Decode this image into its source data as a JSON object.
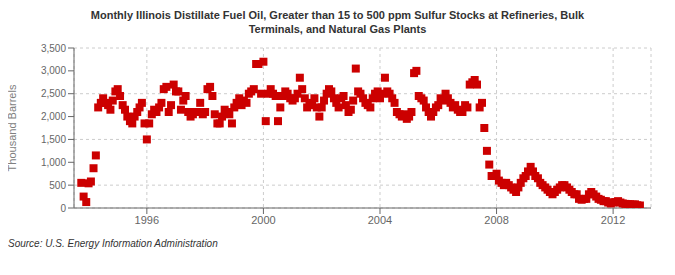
{
  "chart_data": {
    "type": "scatter",
    "title": "Monthly Illinois Distillate Fuel Oil, Greater than 15 to 500 ppm Sulfur Stocks at Refineries, Bulk\nTerminals, and Natural Gas Plants",
    "ylabel": "Thousand Barrels",
    "source": "Source: U.S. Energy Information Administration",
    "color": "#cc0000",
    "marker": "square",
    "grid": true,
    "xlim": [
      1993.5,
      2013.3
    ],
    "xticks": [
      1996,
      2000,
      2004,
      2008,
      2012
    ],
    "ylim": [
      0,
      3500
    ],
    "yticks": [
      0,
      500,
      {
        "value": 1000,
        "label": "1,000"
      },
      {
        "value": 1500,
        "label": "1,500"
      },
      {
        "value": 2000,
        "label": "2,000"
      },
      {
        "value": 2500,
        "label": "2,500"
      },
      {
        "value": 3000,
        "label": "3,000"
      },
      {
        "value": 3500,
        "label": "3,500"
      }
    ],
    "x": [
      1993.75,
      1993.83,
      1993.92,
      1994.0,
      1994.08,
      1994.17,
      1994.25,
      1994.33,
      1994.42,
      1994.5,
      1994.58,
      1994.67,
      1994.75,
      1994.83,
      1994.92,
      1995.0,
      1995.08,
      1995.17,
      1995.25,
      1995.33,
      1995.42,
      1995.5,
      1995.58,
      1995.67,
      1995.75,
      1995.83,
      1995.92,
      1996.0,
      1996.08,
      1996.17,
      1996.25,
      1996.33,
      1996.42,
      1996.5,
      1996.58,
      1996.67,
      1996.75,
      1996.83,
      1996.92,
      1997.0,
      1997.08,
      1997.17,
      1997.25,
      1997.33,
      1997.42,
      1997.5,
      1997.58,
      1997.67,
      1997.75,
      1997.83,
      1997.92,
      1998.0,
      1998.08,
      1998.17,
      1998.25,
      1998.33,
      1998.42,
      1998.5,
      1998.58,
      1998.67,
      1998.75,
      1998.83,
      1998.92,
      1999.0,
      1999.08,
      1999.17,
      1999.25,
      1999.33,
      1999.42,
      1999.5,
      1999.58,
      1999.67,
      1999.75,
      1999.83,
      1999.92,
      2000.0,
      2000.08,
      2000.17,
      2000.25,
      2000.33,
      2000.42,
      2000.5,
      2000.58,
      2000.67,
      2000.75,
      2000.83,
      2000.92,
      2001.0,
      2001.08,
      2001.17,
      2001.25,
      2001.33,
      2001.42,
      2001.5,
      2001.58,
      2001.67,
      2001.75,
      2001.83,
      2001.92,
      2002.0,
      2002.08,
      2002.17,
      2002.25,
      2002.33,
      2002.42,
      2002.5,
      2002.58,
      2002.67,
      2002.75,
      2002.83,
      2002.92,
      2003.0,
      2003.08,
      2003.17,
      2003.25,
      2003.33,
      2003.42,
      2003.5,
      2003.58,
      2003.67,
      2003.75,
      2003.83,
      2003.92,
      2004.0,
      2004.08,
      2004.17,
      2004.25,
      2004.33,
      2004.42,
      2004.5,
      2004.58,
      2004.67,
      2004.75,
      2004.83,
      2004.92,
      2005.0,
      2005.08,
      2005.17,
      2005.25,
      2005.33,
      2005.42,
      2005.5,
      2005.58,
      2005.67,
      2005.75,
      2005.83,
      2005.92,
      2006.0,
      2006.08,
      2006.17,
      2006.25,
      2006.33,
      2006.42,
      2006.5,
      2006.58,
      2006.67,
      2006.75,
      2006.83,
      2006.92,
      2007.0,
      2007.08,
      2007.17,
      2007.25,
      2007.33,
      2007.42,
      2007.5,
      2007.58,
      2007.67,
      2007.75,
      2007.83,
      2007.92,
      2008.0,
      2008.08,
      2008.17,
      2008.25,
      2008.33,
      2008.42,
      2008.5,
      2008.58,
      2008.67,
      2008.75,
      2008.83,
      2008.92,
      2009.0,
      2009.08,
      2009.17,
      2009.25,
      2009.33,
      2009.42,
      2009.5,
      2009.58,
      2009.67,
      2009.75,
      2009.83,
      2009.92,
      2010.0,
      2010.08,
      2010.17,
      2010.25,
      2010.33,
      2010.42,
      2010.5,
      2010.58,
      2010.67,
      2010.75,
      2010.83,
      2010.92,
      2011.0,
      2011.08,
      2011.17,
      2011.25,
      2011.33,
      2011.42,
      2011.5,
      2011.58,
      2011.67,
      2011.75,
      2011.83,
      2011.92,
      2012.0,
      2012.08,
      2012.17,
      2012.25,
      2012.33,
      2012.42,
      2012.5,
      2012.58,
      2012.67,
      2012.75,
      2012.83,
      2012.92
    ],
    "values": [
      550,
      250,
      130,
      540,
      580,
      870,
      1150,
      2200,
      2300,
      2400,
      2300,
      2250,
      2150,
      2350,
      2550,
      2600,
      2450,
      2250,
      2150,
      2000,
      1900,
      1850,
      2000,
      2100,
      2200,
      2300,
      1850,
      1500,
      1850,
      2050,
      2150,
      2100,
      2200,
      2300,
      2600,
      2650,
      2100,
      2250,
      2700,
      2550,
      2550,
      2150,
      2350,
      2450,
      2100,
      2000,
      2050,
      2100,
      2100,
      2300,
      2050,
      2100,
      2600,
      2650,
      2450,
      2050,
      1850,
      1850,
      2000,
      2150,
      2100,
      2050,
      1850,
      2200,
      2300,
      2400,
      2250,
      2350,
      2300,
      2500,
      2550,
      2600,
      3150,
      3150,
      2500,
      3200,
      1900,
      2500,
      2600,
      2500,
      2450,
      1900,
      2200,
      2450,
      2550,
      2500,
      2400,
      2350,
      2400,
      2500,
      2850,
      2600,
      2400,
      2200,
      2250,
      2300,
      2400,
      2200,
      2000,
      2200,
      2350,
      2500,
      2600,
      2550,
      2400,
      2300,
      2200,
      2400,
      2450,
      2250,
      2100,
      2150,
      2350,
      3050,
      2550,
      2500,
      2400,
      2300,
      2250,
      2200,
      2400,
      2500,
      2550,
      2400,
      2500,
      2850,
      2550,
      2500,
      2400,
      2300,
      2100,
      2050,
      2000,
      2050,
      1950,
      2000,
      2100,
      2950,
      3000,
      2450,
      2400,
      2350,
      2200,
      2100,
      2000,
      2100,
      2200,
      2250,
      2400,
      2350,
      2500,
      2400,
      2300,
      2200,
      2250,
      2150,
      2100,
      2100,
      2250,
      2200,
      2700,
      2750,
      2800,
      2700,
      2200,
      2300,
      1750,
      1250,
      950,
      700,
      700,
      750,
      600,
      550,
      500,
      550,
      500,
      450,
      400,
      350,
      450,
      550,
      650,
      700,
      800,
      900,
      800,
      700,
      650,
      550,
      500,
      450,
      400,
      350,
      300,
      350,
      400,
      450,
      500,
      500,
      450,
      400,
      350,
      300,
      300,
      200,
      180,
      200,
      200,
      300,
      350,
      300,
      250,
      200,
      180,
      150,
      150,
      120,
      100,
      120,
      130,
      150,
      120,
      100,
      90,
      85,
      80,
      75,
      80,
      60,
      55
    ]
  }
}
